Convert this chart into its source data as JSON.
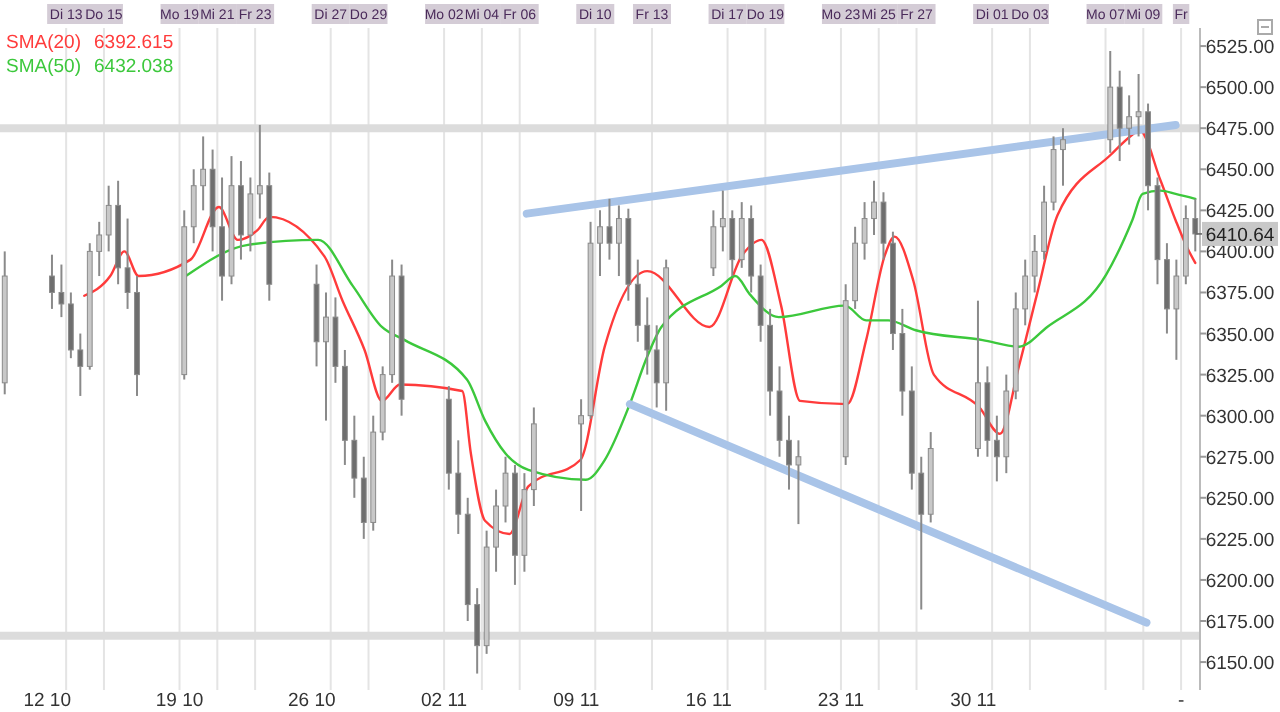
{
  "chart_data": {
    "type": "candlestick",
    "color": "#8a8a8a",
    "x": [
      "--10-09T18:00",
      "--10-12T06:00",
      "--10-12T18:00",
      "--10-13T06:00",
      "--10-13T18:00",
      "--10-14T06:00",
      "--10-14T18:00",
      "--10-15T06:00",
      "--10-15T18:00",
      "--10-16T06:00",
      "--10-16T18:00",
      "--10-19T06:00",
      "--10-19T18:00",
      "--10-20T06:00",
      "--10-20T18:00",
      "--10-21T06:00",
      "--10-21T18:00",
      "--10-22T06:00",
      "--10-22T18:00",
      "--10-23T06:00",
      "--10-23T18:00",
      "--10-26T06:00",
      "--10-26T18:00",
      "--10-27T06:00",
      "--10-27T18:00",
      "--10-28T06:00",
      "--10-28T18:00",
      "--10-29T06:00",
      "--10-29T18:00",
      "--10-30T06:00",
      "--10-30T18:00",
      "--11-02T06:00",
      "--11-02T18:00",
      "--11-03T06:00",
      "--11-03T18:00",
      "--11-04T06:00",
      "--11-04T18:00",
      "--11-05T06:00",
      "--11-05T18:00",
      "--11-06T06:00",
      "--11-06T18:00",
      "--11-09T06:00",
      "--11-09T18:00",
      "--11-10T06:00",
      "--11-10T18:00",
      "--11-11T06:00",
      "--11-11T18:00",
      "--11-12T06:00",
      "--11-12T18:00",
      "--11-13T06:00",
      "--11-13T18:00",
      "--11-16T06:00",
      "--11-16T18:00",
      "--11-17T06:00",
      "--11-17T18:00",
      "--11-18T06:00",
      "--11-18T18:00",
      "--11-19T06:00",
      "--11-19T18:00",
      "--11-20T06:00",
      "--11-20T18:00",
      "--11-23T06:00",
      "--11-23T18:00",
      "--11-24T06:00",
      "--11-24T18:00",
      "--11-25T06:00",
      "--11-25T18:00",
      "--11-26T06:00",
      "--11-26T18:00",
      "--11-27T06:00",
      "--11-27T18:00",
      "--11-30T06:00",
      "--11-30T18:00",
      "--12-01T06:00",
      "--12-01T18:00",
      "--12-02T06:00",
      "--12-02T18:00",
      "--12-03T06:00",
      "--12-03T18:00",
      "--12-04T06:00",
      "--12-04T18:00",
      "--12-07T06:00",
      "--12-07T18:00",
      "--12-08T06:00",
      "--12-08T18:00",
      "--12-09T06:00",
      "--12-09T18:00",
      "--12-10T06:00",
      "--12-10T18:00",
      "--12-11T06:00",
      "--12-11T18:00"
    ],
    "ohlc": [
      [
        6320,
        6400,
        6313,
        6385
      ],
      [
        6385,
        6398,
        6365,
        6375
      ],
      [
        6375,
        6392,
        6360,
        6368
      ],
      [
        6368,
        6375,
        6335,
        6340
      ],
      [
        6340,
        6350,
        6312,
        6330
      ],
      [
        6330,
        6405,
        6328,
        6400
      ],
      [
        6400,
        6418,
        6385,
        6410
      ],
      [
        6410,
        6440,
        6400,
        6428
      ],
      [
        6428,
        6443,
        6380,
        6390
      ],
      [
        6390,
        6420,
        6365,
        6375
      ],
      [
        6375,
        6385,
        6312,
        6325
      ],
      [
        6325,
        6425,
        6322,
        6415
      ],
      [
        6415,
        6450,
        6405,
        6440
      ],
      [
        6440,
        6470,
        6425,
        6450
      ],
      [
        6450,
        6462,
        6400,
        6415
      ],
      [
        6415,
        6445,
        6370,
        6385
      ],
      [
        6385,
        6458,
        6380,
        6440
      ],
      [
        6440,
        6455,
        6395,
        6410
      ],
      [
        6410,
        6445,
        6400,
        6435
      ],
      [
        6435,
        6477,
        6420,
        6440
      ],
      [
        6440,
        6448,
        6370,
        6380
      ],
      [
        6380,
        6392,
        6330,
        6345
      ],
      [
        6345,
        6375,
        6297,
        6360
      ],
      [
        6360,
        6372,
        6320,
        6330
      ],
      [
        6330,
        6340,
        6270,
        6285
      ],
      [
        6285,
        6300,
        6250,
        6262
      ],
      [
        6262,
        6275,
        6225,
        6235
      ],
      [
        6235,
        6300,
        6230,
        6290
      ],
      [
        6290,
        6330,
        6285,
        6325
      ],
      [
        6325,
        6395,
        6320,
        6385
      ],
      [
        6385,
        6392,
        6300,
        6310
      ],
      [
        6310,
        6318,
        6255,
        6265
      ],
      [
        6265,
        6285,
        6228,
        6240
      ],
      [
        6240,
        6250,
        6175,
        6185
      ],
      [
        6185,
        6195,
        6143,
        6160
      ],
      [
        6160,
        6230,
        6155,
        6220
      ],
      [
        6220,
        6255,
        6205,
        6245
      ],
      [
        6245,
        6275,
        6235,
        6265
      ],
      [
        6265,
        6270,
        6197,
        6215
      ],
      [
        6215,
        6265,
        6205,
        6255
      ],
      [
        6255,
        6305,
        6245,
        6295
      ],
      [
        6295,
        6310,
        6242,
        6300
      ],
      [
        6300,
        6418,
        6298,
        6405
      ],
      [
        6405,
        6425,
        6385,
        6415
      ],
      [
        6415,
        6432,
        6395,
        6405
      ],
      [
        6405,
        6428,
        6385,
        6420
      ],
      [
        6420,
        6426,
        6370,
        6380
      ],
      [
        6380,
        6395,
        6345,
        6355
      ],
      [
        6355,
        6372,
        6325,
        6340
      ],
      [
        6340,
        6355,
        6305,
        6320
      ],
      [
        6320,
        6395,
        6303,
        6390
      ],
      [
        6390,
        6425,
        6385,
        6415
      ],
      [
        6415,
        6437,
        6400,
        6420
      ],
      [
        6420,
        6425,
        6385,
        6395
      ],
      [
        6395,
        6430,
        6390,
        6420
      ],
      [
        6420,
        6428,
        6375,
        6385
      ],
      [
        6385,
        6392,
        6345,
        6355
      ],
      [
        6355,
        6365,
        6300,
        6315
      ],
      [
        6315,
        6330,
        6275,
        6285
      ],
      [
        6285,
        6300,
        6255,
        6270
      ],
      [
        6270,
        6285,
        6234,
        6275
      ],
      [
        6275,
        6380,
        6270,
        6370
      ],
      [
        6370,
        6415,
        6365,
        6405
      ],
      [
        6405,
        6430,
        6395,
        6420
      ],
      [
        6420,
        6443,
        6410,
        6430
      ],
      [
        6430,
        6436,
        6395,
        6405
      ],
      [
        6405,
        6412,
        6340,
        6350
      ],
      [
        6350,
        6365,
        6300,
        6315
      ],
      [
        6315,
        6330,
        6255,
        6265
      ],
      [
        6265,
        6275,
        6182,
        6240
      ],
      [
        6240,
        6290,
        6235,
        6280
      ],
      [
        6280,
        6370,
        6275,
        6320
      ],
      [
        6320,
        6330,
        6275,
        6285
      ],
      [
        6285,
        6300,
        6260,
        6275
      ],
      [
        6275,
        6325,
        6265,
        6315
      ],
      [
        6315,
        6375,
        6310,
        6365
      ],
      [
        6365,
        6395,
        6355,
        6385
      ],
      [
        6385,
        6410,
        6375,
        6400
      ],
      [
        6400,
        6440,
        6395,
        6430
      ],
      [
        6430,
        6470,
        6425,
        6462
      ],
      [
        6462,
        6475,
        6440,
        6468
      ],
      [
        6468,
        6522,
        6460,
        6500
      ],
      [
        6500,
        6510,
        6455,
        6475
      ],
      [
        6475,
        6495,
        6465,
        6482
      ],
      [
        6482,
        6508,
        6470,
        6485
      ],
      [
        6485,
        6490,
        6425,
        6440
      ],
      [
        6440,
        6445,
        6380,
        6395
      ],
      [
        6395,
        6405,
        6350,
        6365
      ],
      [
        6365,
        6395,
        6334,
        6385
      ],
      [
        6385,
        6428,
        6380,
        6420
      ],
      [
        6420,
        6432,
        6400,
        6410.64
      ]
    ],
    "series": [
      {
        "name": "SMA(20)",
        "type": "line",
        "color": "#ff3b3b",
        "x": [
          "--10-13T23:00",
          "--10-15T08:00",
          "--10-16T02:00",
          "--10-16T20:00",
          "--10-19T14:00",
          "--10-21T02:00",
          "--10-22T02:00",
          "--10-23T03:00",
          "--10-23T18:00",
          "--10-26T16:00",
          "--10-27T15:00",
          "--10-28T19:00",
          "--10-29T17:00",
          "--10-30T16:00",
          "--11-02T23:00",
          "--11-03T10:00",
          "--11-04T04:00",
          "--11-05T11:00",
          "--11-06T11:00",
          "--11-09T05:00",
          "--11-10T12:00",
          "--11-12T18:00",
          "--11-16T01:00",
          "--11-17T19:00",
          "--11-18T19:00",
          "--11-19T20:00",
          "--11-20T20:00",
          "--11-23T08:00",
          "--11-24T08:00",
          "--11-25T08:00",
          "--11-25T20:00",
          "--11-26T20:00",
          "--11-27T22:00",
          "--11-30T08:00",
          "--12-01T10:00",
          "--12-02T10:00",
          "--12-03T09:00",
          "--12-04T11:00",
          "--12-07T07:00",
          "--12-08T10:00",
          "--12-08T19:00",
          "--12-09T22:00",
          "--12-10T17:00",
          "--12-11T07:00",
          "--12-11T18:00"
        ],
        "values": [
          6373,
          6385,
          6400,
          6385,
          6395,
          6427,
          6407,
          6413,
          6421,
          6397,
          6370,
          6340,
          6309,
          6319,
          6315,
          6277,
          6236,
          6228,
          6257,
          6273,
          6342,
          6388,
          6354,
          6398,
          6407,
          6367,
          6309,
          6307,
          6346,
          6398,
          6409,
          6382,
          6325,
          6305,
          6289,
          6330,
          6374,
          6422,
          6459,
          6471,
          6474,
          6443,
          6419,
          6403,
          6393
        ]
      },
      {
        "name": "SMA(50)",
        "type": "line",
        "color": "#3cc83c",
        "x": [
          "--10-19T08:00",
          "--10-22T15:00",
          "--10-26T08:00",
          "--10-28T04:00",
          "--10-29T17:00",
          "--10-30T22:00",
          "--11-03T05:00",
          "--11-04T04:00",
          "--11-05T06:00",
          "--11-06T11:00",
          "--11-09T12:00",
          "--11-10T12:00",
          "--11-11T19:00",
          "--11-12T18:00",
          "--11-13T12:00",
          "--11-16T16:00",
          "--11-17T10:00",
          "--11-18T04:00",
          "--11-19T17:00",
          "--11-23T05:00",
          "--11-24T08:00",
          "--11-25T12:00",
          "--11-26T23:00",
          "--11-30T12:00",
          "--12-02T10:00",
          "--12-03T22:00",
          "--12-07T01:00",
          "--12-08T10:00",
          "--12-08T23:00",
          "--12-09T22:00",
          "--12-10T17:00",
          "--12-11T18:00"
        ],
        "values": [
          6385,
          6404,
          6407,
          6379,
          6354,
          6346,
          6322,
          6297,
          6277,
          6267,
          6261,
          6273,
          6306,
          6336,
          6354,
          6379,
          6385,
          6374,
          6360,
          6367,
          6358,
          6358,
          6352,
          6346,
          6342,
          6354,
          6386,
          6419,
          6435,
          6437,
          6435,
          6432
        ]
      },
      {
        "type": "line",
        "color": "#a9c4e8",
        "x": [
          "--11-06T09:00",
          "--12-10T17:00"
        ],
        "values": [
          6423,
          6477
        ]
      },
      {
        "type": "line",
        "color": "#a9c4e8",
        "x": [
          "--11-11T20:00",
          "--12-09T04:00"
        ],
        "values": [
          6307,
          6174
        ]
      }
    ],
    "xlim": [
      "--10-09T12:00",
      "--12-12T00:00"
    ],
    "xticks": [
      {
        "value": "--10-12",
        "label": "12 10"
      },
      {
        "value": "--10-19",
        "label": "19 10"
      },
      {
        "value": "--10-26",
        "label": "26 10"
      },
      {
        "value": "--11-02",
        "label": "02 11"
      },
      {
        "value": "--11-09",
        "label": "09 11"
      },
      {
        "value": "--11-16",
        "label": "16 11"
      },
      {
        "value": "--11-23",
        "label": "23 11"
      },
      {
        "value": "--11-30",
        "label": "30 11"
      },
      {
        "value": "--12-11",
        "label": "-"
      }
    ],
    "x2lim": [
      "--10-09T12:00",
      "--12-12T00:00"
    ],
    "x2ticks": [
      {
        "value": "--10-13",
        "label": "Di 13"
      },
      {
        "value": "--10-15",
        "label": "Do 15"
      },
      {
        "value": "--10-19",
        "label": "Mo 19"
      },
      {
        "value": "--10-21",
        "label": "Mi 21"
      },
      {
        "value": "--10-23",
        "label": "Fr 23"
      },
      {
        "value": "--10-27",
        "label": "Di 27"
      },
      {
        "value": "--10-29",
        "label": "Do 29"
      },
      {
        "value": "--11-02",
        "label": "Mo 02"
      },
      {
        "value": "--11-04",
        "label": "Mi 04"
      },
      {
        "value": "--11-06",
        "label": "Fr 06"
      },
      {
        "value": "--11-10",
        "label": "Di 10"
      },
      {
        "value": "--11-13",
        "label": "Fr 13"
      },
      {
        "value": "--11-17",
        "label": "Di 17"
      },
      {
        "value": "--11-19",
        "label": "Do 19"
      },
      {
        "value": "--11-23",
        "label": "Mo 23"
      },
      {
        "value": "--11-25",
        "label": "Mi 25"
      },
      {
        "value": "--11-27",
        "label": "Fr 27"
      },
      {
        "value": "--12-01",
        "label": "Di 01"
      },
      {
        "value": "--12-03",
        "label": "Do 03"
      },
      {
        "value": "--12-07",
        "label": "Mo 07"
      },
      {
        "value": "--12-09",
        "label": "Mi 09"
      },
      {
        "value": "--12-11",
        "label": "Fr"
      }
    ],
    "ylim": [
      6133,
      6536
    ],
    "yticks": [
      {
        "value": 6150,
        "label": "6150.00"
      },
      {
        "value": 6175,
        "label": "6175.00"
      },
      {
        "value": 6200,
        "label": "6200.00"
      },
      {
        "value": 6225,
        "label": "6225.00"
      },
      {
        "value": 6250,
        "label": "6250.00"
      },
      {
        "value": 6275,
        "label": "6275.00"
      },
      {
        "value": 6300,
        "label": "6300.00"
      },
      {
        "value": 6325,
        "label": "6325.00"
      },
      {
        "value": 6350,
        "label": "6350.00"
      },
      {
        "value": 6375,
        "label": "6375.00"
      },
      {
        "value": 6400,
        "label": "6400.00"
      },
      {
        "value": 6425,
        "label": "6425.00"
      },
      {
        "value": 6450,
        "label": "6450.00"
      },
      {
        "value": 6475,
        "label": "6475.00"
      },
      {
        "value": 6500,
        "label": "6500.00"
      },
      {
        "value": 6525,
        "label": "6525.00"
      }
    ],
    "ref_lines": [
      {
        "axis": "y",
        "value": 6475,
        "color": "#dcdcdc"
      },
      {
        "axis": "y",
        "value": 6166,
        "color": "#dcdcdc"
      }
    ],
    "annotations": [
      "6392.615",
      "6432.038",
      "6410.64"
    ],
    "grid": "x",
    "legend": "top left",
    "marker": "none"
  }
}
